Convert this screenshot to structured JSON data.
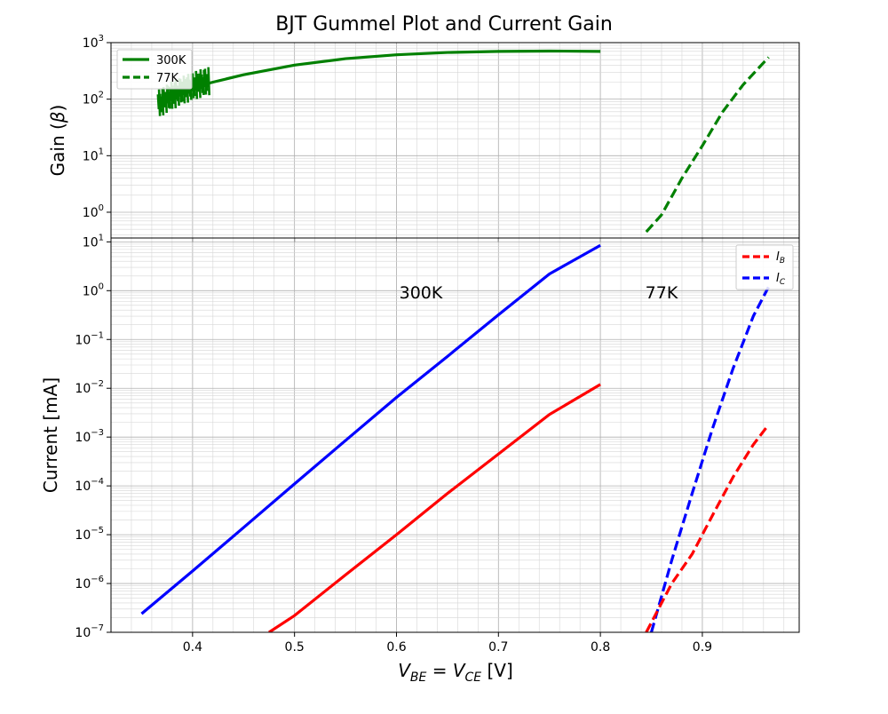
{
  "chart_data": [
    {
      "type": "line",
      "panel": "gain",
      "title": "BJT Gummel Plot and Current Gain",
      "ylabel": "Gain (β)",
      "yscale": "log",
      "xlim": [
        0.32,
        0.995
      ],
      "ylim": [
        0.35,
        1000
      ],
      "yticks": [
        1,
        10,
        100,
        1000
      ],
      "ytick_labels": [
        "10⁰",
        "10¹",
        "10²",
        "10³"
      ],
      "grid": true,
      "legend": "upper-left",
      "series": [
        {
          "name": "300K",
          "color": "#008000",
          "style": "solid",
          "x": [
            0.37,
            0.38,
            0.39,
            0.4,
            0.42,
            0.45,
            0.5,
            0.55,
            0.6,
            0.65,
            0.7,
            0.75,
            0.8
          ],
          "y": [
            100,
            120,
            140,
            160,
            200,
            270,
            400,
            520,
            610,
            670,
            700,
            710,
            700
          ]
        },
        {
          "name": "77K",
          "color": "#008000",
          "style": "dashed",
          "x": [
            0.845,
            0.86,
            0.88,
            0.9,
            0.92,
            0.94,
            0.965
          ],
          "y": [
            0.45,
            0.9,
            4,
            15,
            60,
            180,
            550
          ]
        }
      ]
    },
    {
      "type": "line",
      "panel": "current",
      "xlabel": "V_BE = V_CE [V]",
      "ylabel": "Current [mA]",
      "yscale": "log",
      "xlim": [
        0.32,
        0.995
      ],
      "ylim": [
        1e-07,
        12
      ],
      "xticks": [
        "0.4",
        "0.5",
        "0.6",
        "0.7",
        "0.8",
        "0.9"
      ],
      "yticks": [
        1e-07,
        1e-06,
        1e-05,
        0.0001,
        0.001,
        0.01,
        0.1,
        1,
        10
      ],
      "ytick_labels": [
        "10⁻⁷",
        "10⁻⁶",
        "10⁻⁵",
        "10⁻⁴",
        "10⁻³",
        "10⁻²",
        "10⁻¹",
        "10⁰",
        "10¹"
      ],
      "grid": true,
      "legend": "upper-right",
      "legend_entries": [
        {
          "label": "I",
          "sub": "B",
          "color": "#ff0000",
          "style": "dashed"
        },
        {
          "label": "I",
          "sub": "C",
          "color": "#0000ff",
          "style": "dashed"
        }
      ],
      "annotations": [
        {
          "text": "300K",
          "x": 0.625,
          "y": 0.7
        },
        {
          "text": "77K",
          "x": 0.875,
          "y": 0.7
        }
      ],
      "series": [
        {
          "name": "IC 300K",
          "color": "#0000ff",
          "style": "solid",
          "x": [
            0.35,
            0.4,
            0.45,
            0.5,
            0.55,
            0.6,
            0.65,
            0.7,
            0.75,
            0.8
          ],
          "y": [
            2.4e-07,
            1.8e-06,
            1.4e-05,
            0.00011,
            0.00085,
            0.0065,
            0.045,
            0.32,
            2.2,
            8.5
          ]
        },
        {
          "name": "IB 300K",
          "color": "#ff0000",
          "style": "solid",
          "x": [
            0.475,
            0.5,
            0.55,
            0.6,
            0.65,
            0.7,
            0.75,
            0.8
          ],
          "y": [
            1e-07,
            2.2e-07,
            1.5e-06,
            1e-05,
            7e-05,
            0.00045,
            0.0029,
            0.012
          ]
        },
        {
          "name": "IC 77K",
          "color": "#0000ff",
          "style": "dashed",
          "x": [
            0.85,
            0.87,
            0.89,
            0.91,
            0.93,
            0.95,
            0.965
          ],
          "y": [
            1e-07,
            3e-06,
            7e-05,
            0.0015,
            0.025,
            0.3,
            1.2
          ]
        },
        {
          "name": "IB 77K",
          "color": "#ff0000",
          "style": "dashed",
          "x": [
            0.845,
            0.87,
            0.89,
            0.91,
            0.93,
            0.95,
            0.965
          ],
          "y": [
            1e-07,
            1e-06,
            4e-06,
            2.5e-05,
            0.00015,
            0.0007,
            0.0018
          ]
        }
      ]
    }
  ]
}
